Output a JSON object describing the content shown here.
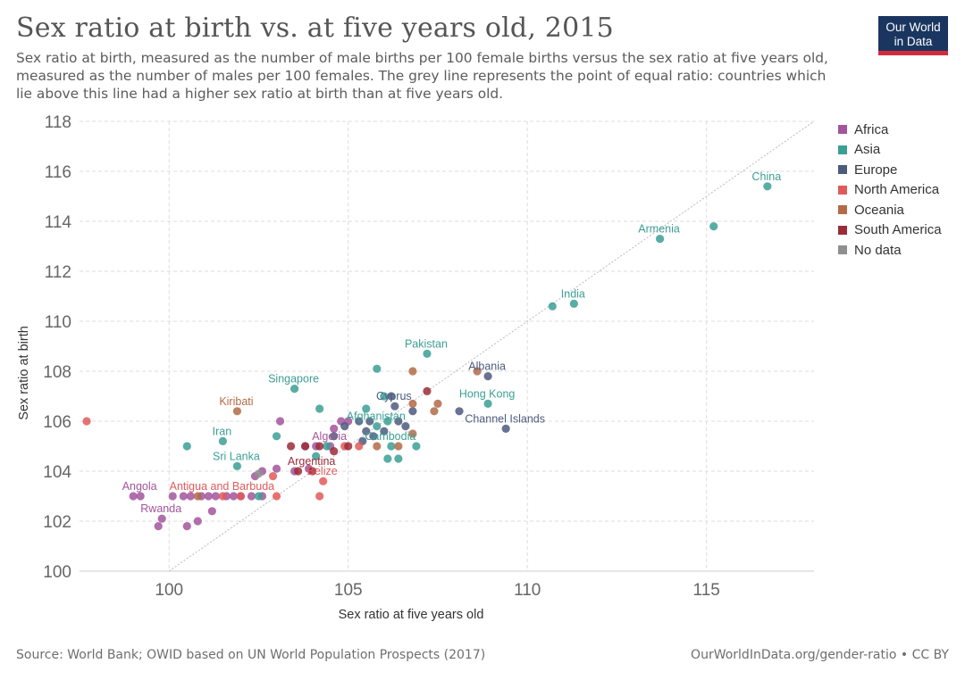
{
  "header": {
    "title": "Sex ratio at birth vs. at five years old, 2015",
    "subtitle": "Sex ratio at birth, measured as the number of male births per 100 female births versus the sex ratio at five years old, measured as the number of males per 100 females. The grey line represents the point of equal ratio: countries which lie above this line had a higher sex ratio at birth than at five years old."
  },
  "logo": {
    "line1": "Our World",
    "line2": "in Data"
  },
  "footer": {
    "source": "Source: World Bank; OWID based on UN World Population Prospects (2017)",
    "link": "OurWorldInData.org/gender-ratio • CC BY"
  },
  "chart_data": {
    "type": "scatter",
    "xlabel": "Sex ratio at five years old",
    "ylabel": "Sex ratio at birth",
    "xlim": [
      97.5,
      118
    ],
    "ylim": [
      100,
      118
    ],
    "x_ticks": [
      100,
      105,
      110,
      115
    ],
    "y_ticks": [
      100,
      102,
      104,
      106,
      108,
      110,
      112,
      114,
      116,
      118
    ],
    "grid": true,
    "reference_line": "y = x",
    "legend_position": "right",
    "series": [
      {
        "name": "Africa",
        "color": "#a2559c",
        "points": [
          {
            "x": 99.2,
            "y": 103,
            "label": "Angola"
          },
          {
            "x": 99.8,
            "y": 102.1,
            "label": "Rwanda"
          },
          {
            "x": 104.5,
            "y": 105,
            "label": "Algeria"
          },
          {
            "x": 99.0,
            "y": 103
          },
          {
            "x": 100.1,
            "y": 103
          },
          {
            "x": 100.4,
            "y": 103
          },
          {
            "x": 100.6,
            "y": 103
          },
          {
            "x": 100.9,
            "y": 103
          },
          {
            "x": 101.1,
            "y": 103
          },
          {
            "x": 101.3,
            "y": 103
          },
          {
            "x": 101.6,
            "y": 103
          },
          {
            "x": 101.8,
            "y": 103
          },
          {
            "x": 102.0,
            "y": 103
          },
          {
            "x": 102.3,
            "y": 103
          },
          {
            "x": 102.6,
            "y": 103
          },
          {
            "x": 99.7,
            "y": 101.8
          },
          {
            "x": 100.5,
            "y": 101.8
          },
          {
            "x": 100.8,
            "y": 102.0
          },
          {
            "x": 101.2,
            "y": 102.4
          },
          {
            "x": 102.6,
            "y": 104
          },
          {
            "x": 102.4,
            "y": 103.8
          },
          {
            "x": 103.0,
            "y": 104.1
          },
          {
            "x": 103.1,
            "y": 106.0
          },
          {
            "x": 103.8,
            "y": 105
          },
          {
            "x": 104.1,
            "y": 105
          },
          {
            "x": 104.8,
            "y": 106.0
          },
          {
            "x": 105.0,
            "y": 106.0
          },
          {
            "x": 104.6,
            "y": 105.7
          },
          {
            "x": 103.5,
            "y": 104.0
          },
          {
            "x": 103.9,
            "y": 104.1
          }
        ]
      },
      {
        "name": "Asia",
        "color": "#3b9f94",
        "points": [
          {
            "x": 116.7,
            "y": 115.4,
            "label": "China"
          },
          {
            "x": 113.7,
            "y": 113.3,
            "label": "Armenia"
          },
          {
            "x": 111.3,
            "y": 110.7,
            "label": "India"
          },
          {
            "x": 107.2,
            "y": 108.7,
            "label": "Pakistan"
          },
          {
            "x": 103.5,
            "y": 107.3,
            "label": "Singapore"
          },
          {
            "x": 108.9,
            "y": 106.7,
            "label": "Hong Kong"
          },
          {
            "x": 105.8,
            "y": 105.8,
            "label": "Afghanistan"
          },
          {
            "x": 101.5,
            "y": 105.2,
            "label": "Iran"
          },
          {
            "x": 106.2,
            "y": 105.0,
            "label": "Cambodia"
          },
          {
            "x": 101.9,
            "y": 104.2,
            "label": "Sri Lanka"
          },
          {
            "x": 115.2,
            "y": 113.8
          },
          {
            "x": 110.7,
            "y": 110.6
          },
          {
            "x": 105.8,
            "y": 108.1
          },
          {
            "x": 100.5,
            "y": 105.0
          },
          {
            "x": 103.0,
            "y": 105.4
          },
          {
            "x": 104.2,
            "y": 106.5
          },
          {
            "x": 106.0,
            "y": 107.0
          },
          {
            "x": 106.1,
            "y": 106.0
          },
          {
            "x": 106.1,
            "y": 104.5
          },
          {
            "x": 106.4,
            "y": 104.5
          },
          {
            "x": 106.9,
            "y": 105.0
          },
          {
            "x": 105.5,
            "y": 106.5
          },
          {
            "x": 104.4,
            "y": 105.0
          },
          {
            "x": 102.5,
            "y": 103.0
          },
          {
            "x": 104.1,
            "y": 104.6
          }
        ]
      },
      {
        "name": "Europe",
        "color": "#4c5b7c",
        "points": [
          {
            "x": 108.9,
            "y": 107.8,
            "label": "Albania"
          },
          {
            "x": 109.4,
            "y": 105.7,
            "label": "Channel Islands"
          },
          {
            "x": 106.3,
            "y": 106.6,
            "label": "Cyprus"
          },
          {
            "x": 108.1,
            "y": 106.4
          },
          {
            "x": 106.8,
            "y": 106.4
          },
          {
            "x": 105.3,
            "y": 106.0
          },
          {
            "x": 105.5,
            "y": 105.6
          },
          {
            "x": 105.7,
            "y": 105.4
          },
          {
            "x": 105.6,
            "y": 106.0
          },
          {
            "x": 106.0,
            "y": 105.6
          },
          {
            "x": 106.4,
            "y": 106.0
          },
          {
            "x": 106.6,
            "y": 105.8
          },
          {
            "x": 105.4,
            "y": 105.2
          },
          {
            "x": 104.9,
            "y": 105.8
          },
          {
            "x": 106.2,
            "y": 107.0
          },
          {
            "x": 104.6,
            "y": 105.4
          }
        ]
      },
      {
        "name": "North America",
        "color": "#e05a5a",
        "points": [
          {
            "x": 104.3,
            "y": 103.6,
            "label": "Belize"
          },
          {
            "x": 101.5,
            "y": 103.0,
            "label": "Antigua and Barbuda"
          },
          {
            "x": 97.7,
            "y": 106.0
          },
          {
            "x": 104.2,
            "y": 103.0
          },
          {
            "x": 102.0,
            "y": 103.0
          },
          {
            "x": 103.0,
            "y": 103.0
          },
          {
            "x": 104.9,
            "y": 105.0
          },
          {
            "x": 105.3,
            "y": 105.0
          },
          {
            "x": 102.9,
            "y": 103.8
          }
        ]
      },
      {
        "name": "Oceania",
        "color": "#b26b46",
        "points": [
          {
            "x": 101.9,
            "y": 106.4,
            "label": "Kiribati"
          },
          {
            "x": 106.8,
            "y": 108.0
          },
          {
            "x": 108.6,
            "y": 108.0
          },
          {
            "x": 107.5,
            "y": 106.7
          },
          {
            "x": 107.4,
            "y": 106.4
          },
          {
            "x": 106.8,
            "y": 106.7
          },
          {
            "x": 106.8,
            "y": 105.5
          },
          {
            "x": 106.4,
            "y": 105.0
          },
          {
            "x": 105.8,
            "y": 105.0
          },
          {
            "x": 100.8,
            "y": 103.0
          }
        ]
      },
      {
        "name": "South America",
        "color": "#9c2b3a",
        "points": [
          {
            "x": 104.0,
            "y": 104.0,
            "label": "Argentina"
          },
          {
            "x": 107.2,
            "y": 107.2
          },
          {
            "x": 103.4,
            "y": 105.0
          },
          {
            "x": 103.8,
            "y": 105.0
          },
          {
            "x": 104.2,
            "y": 105.0
          },
          {
            "x": 104.6,
            "y": 104.8
          },
          {
            "x": 103.6,
            "y": 104.0
          },
          {
            "x": 105.0,
            "y": 105.0
          }
        ]
      },
      {
        "name": "No data",
        "color": "#8f8f8f",
        "points": [
          {
            "x": 102.5,
            "y": 103.9
          }
        ]
      }
    ]
  }
}
